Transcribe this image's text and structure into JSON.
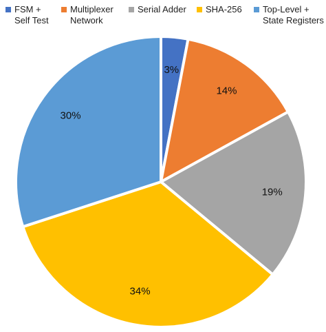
{
  "chart_data": {
    "type": "pie",
    "title": "",
    "legend": {
      "placement": "top"
    },
    "slices": [
      {
        "label": "FSM +\nSelf Test",
        "value": 3,
        "display_label": "3%",
        "color": "#4472C4"
      },
      {
        "label": "Multiplexer\nNetwork",
        "value": 14,
        "display_label": "14%",
        "color": "#ED7D31"
      },
      {
        "label": "Serial Adder",
        "value": 19,
        "display_label": "19%",
        "color": "#A5A5A5"
      },
      {
        "label": "SHA-256",
        "value": 34,
        "display_label": "34%",
        "color": "#FFC000"
      },
      {
        "label": "Top-Level +\nState Registers",
        "value": 30,
        "display_label": "30%",
        "color": "#5B9BD5"
      }
    ]
  }
}
